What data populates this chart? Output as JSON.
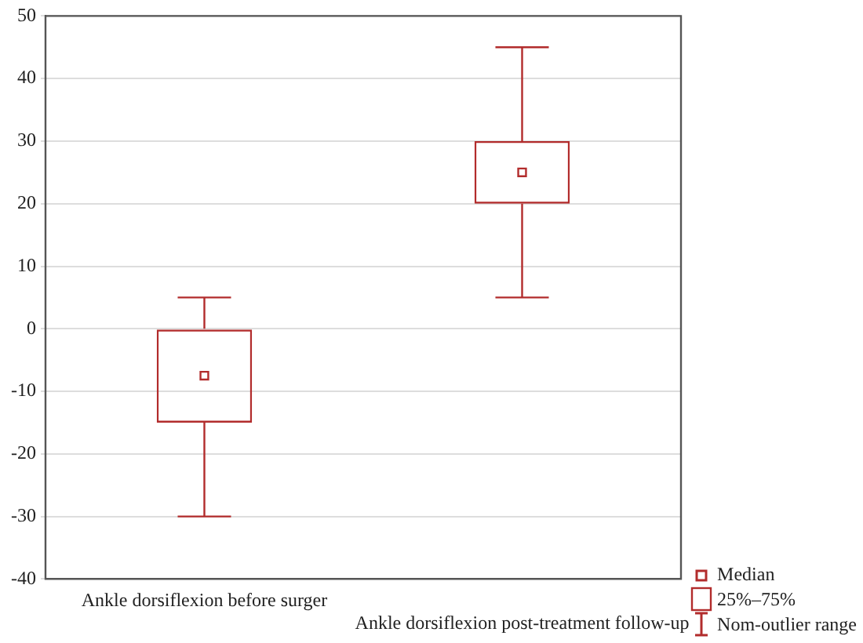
{
  "chart_data": {
    "type": "box",
    "categories": [
      "Ankle dorsiflexion before surger",
      "Ankle dorsiflexion post-treatment follow-up"
    ],
    "boxes": [
      {
        "low": -30,
        "q1": -15,
        "median": -7.5,
        "q3": 0,
        "high": 5
      },
      {
        "low": 5,
        "q1": 20,
        "median": 25,
        "q3": 30,
        "high": 45
      }
    ],
    "color": "#b22c2c",
    "ylim": [
      -40,
      50
    ],
    "yticks": [
      -40,
      -30,
      -20,
      -10,
      0,
      10,
      20,
      30,
      40,
      50
    ],
    "grid": "y",
    "marker": "square",
    "annotations": [
      "Median",
      "25%–75%",
      "Nom-outlier range"
    ]
  }
}
